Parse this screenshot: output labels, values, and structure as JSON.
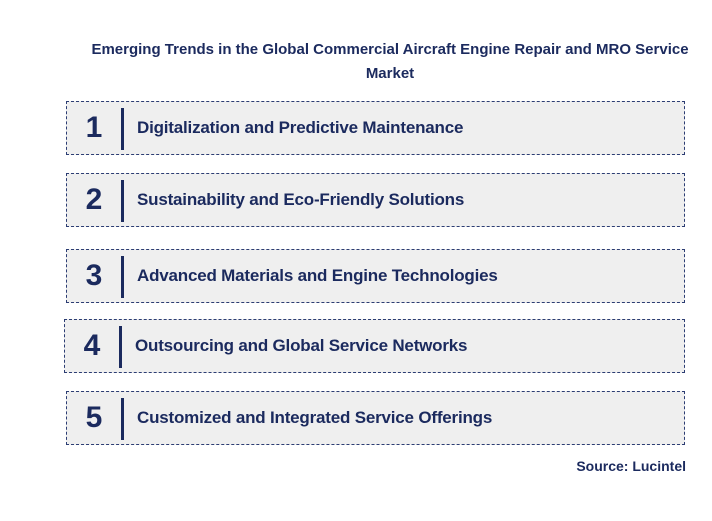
{
  "title": "Emerging Trends in the Global Commercial Aircraft Engine Repair and MRO Service Market",
  "trends": [
    {
      "number": "1",
      "label": "Digitalization and Predictive Maintenance"
    },
    {
      "number": "2",
      "label": "Sustainability and Eco-Friendly Solutions"
    },
    {
      "number": "3",
      "label": "Advanced Materials and Engine Technologies"
    },
    {
      "number": "4",
      "label": "Outsourcing and Global Service Networks"
    },
    {
      "number": "5",
      "label": "Customized and Integrated Service Offerings"
    }
  ],
  "source": "Source: Lucintel",
  "colors": {
    "text": "#1b2a5e",
    "box_fill": "#efefef",
    "box_border": "#2c3d73"
  }
}
